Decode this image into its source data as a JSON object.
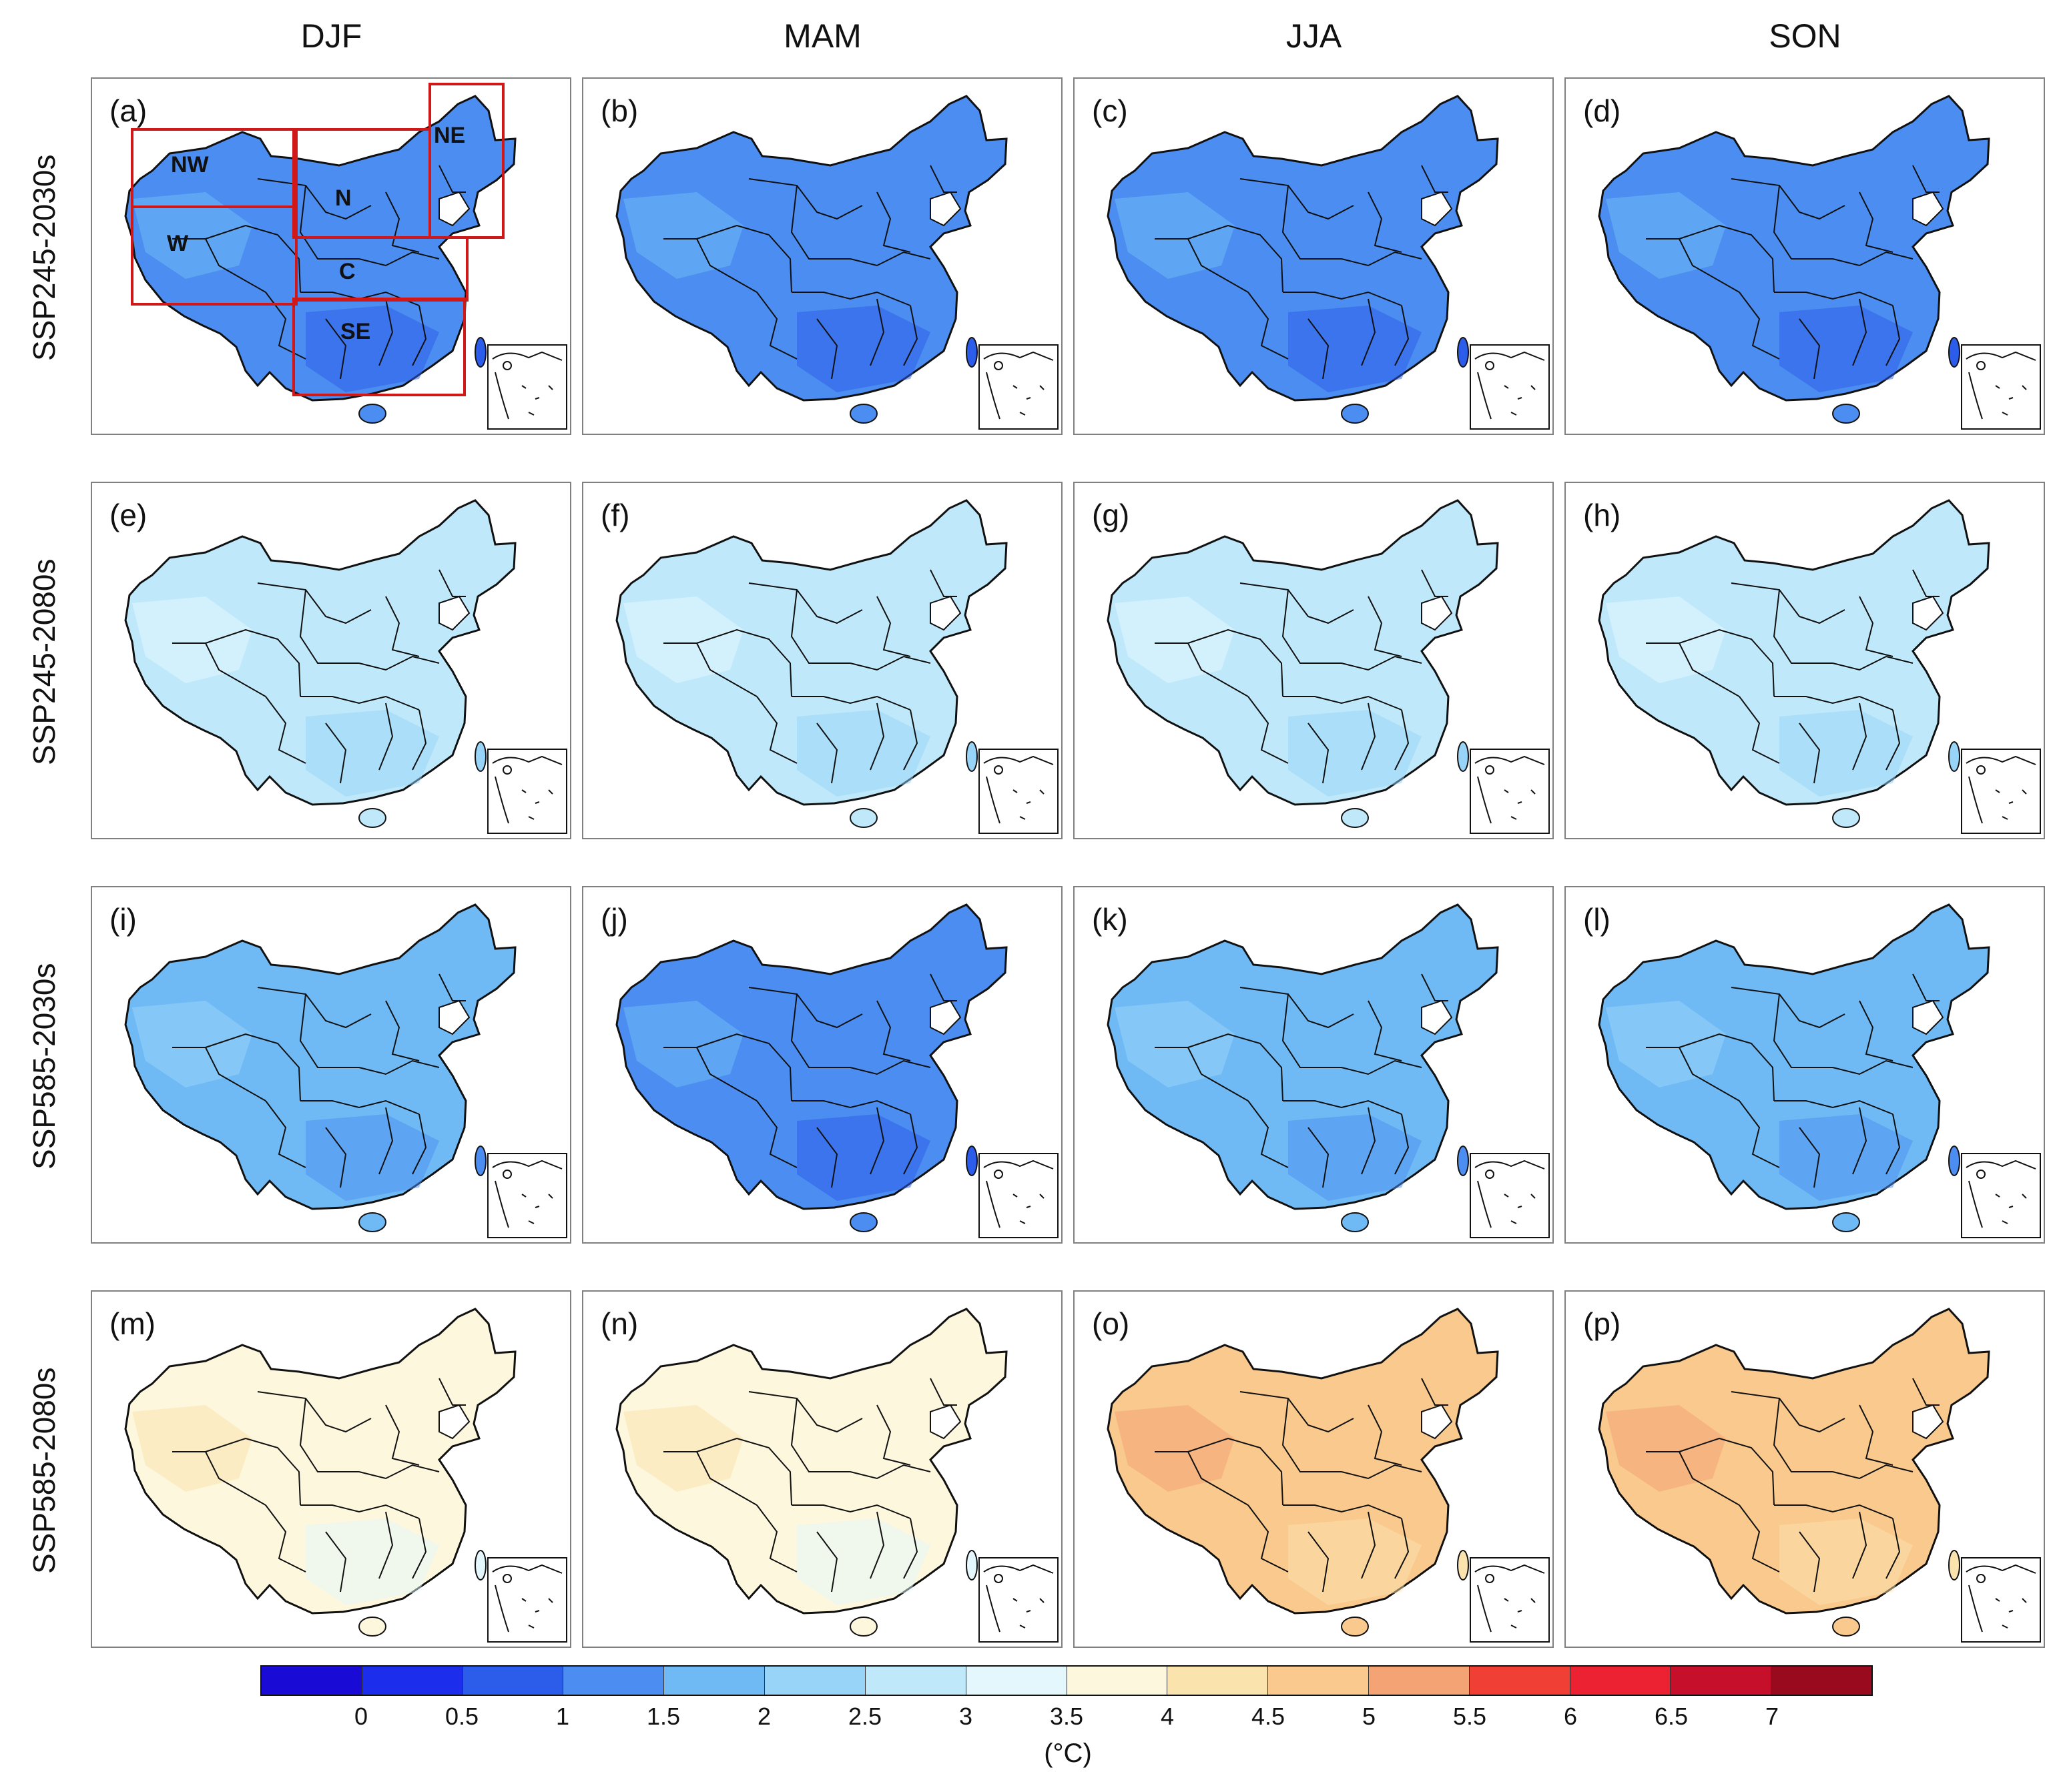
{
  "columns": [
    "DJF",
    "MAM",
    "JJA",
    "SON"
  ],
  "rows": [
    "SSP245-2030s",
    "SSP245-2080s",
    "SSP585-2030s",
    "SSP585-2080s"
  ],
  "panels": [
    {
      "label": "(a)",
      "level": 1.25
    },
    {
      "label": "(b)",
      "level": 1.05
    },
    {
      "label": "(c)",
      "level": 1.45
    },
    {
      "label": "(d)",
      "level": 1.3
    },
    {
      "label": "(e)",
      "level": 2.5
    },
    {
      "label": "(f)",
      "level": 2.5
    },
    {
      "label": "(g)",
      "level": 2.75
    },
    {
      "label": "(h)",
      "level": 2.75
    },
    {
      "label": "(i)",
      "level": 1.5
    },
    {
      "label": "(j)",
      "level": 1.25
    },
    {
      "label": "(k)",
      "level": 1.5
    },
    {
      "label": "(l)",
      "level": 1.75
    },
    {
      "label": "(m)",
      "level": 3.75
    },
    {
      "label": "(n)",
      "level": 3.6
    },
    {
      "label": "(o)",
      "level": 4.6
    },
    {
      "label": "(p)",
      "level": 4.5
    }
  ],
  "regions": [
    "NW",
    "NE",
    "N",
    "W",
    "C",
    "SE"
  ],
  "colorbar": {
    "ticks": [
      "0",
      "0.5",
      "1",
      "1.5",
      "2",
      "2.5",
      "3",
      "3.5",
      "4",
      "4.5",
      "5",
      "5.5",
      "6",
      "6.5",
      "7"
    ],
    "unit": "(°C)",
    "colors": [
      "#1a0ad6",
      "#1c2eec",
      "#2c5cea",
      "#4b8df0",
      "#6fbaf5",
      "#97d4f7",
      "#bfe9fb",
      "#e3f7fd",
      "#fdf7dd",
      "#fbe3ae",
      "#f9c98e",
      "#f4a474",
      "#f04035",
      "#ec2131",
      "#c50f2b",
      "#9a0a1f"
    ]
  }
}
